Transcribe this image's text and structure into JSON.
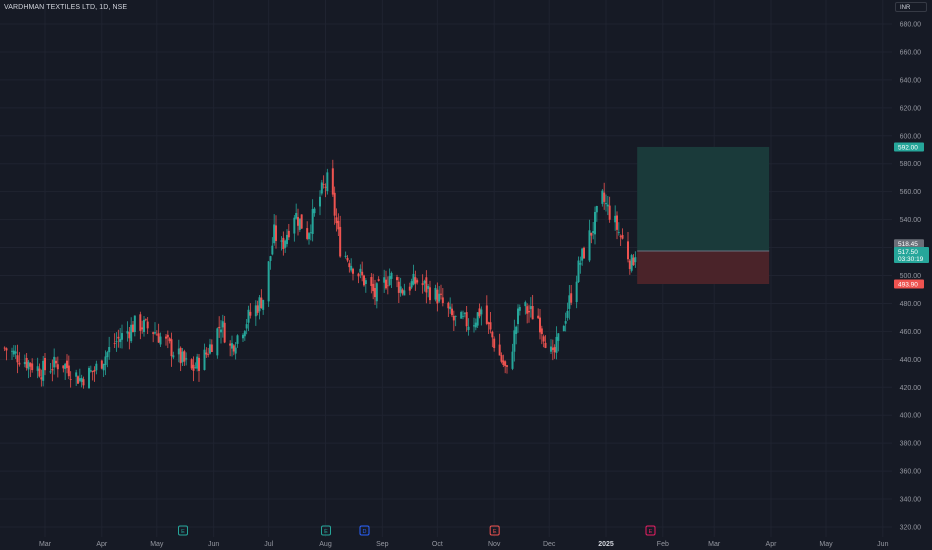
{
  "header": {
    "title": "VARDHMAN TEXTILES LTD, 1D, NSE",
    "currency": "INR"
  },
  "colors": {
    "background": "#161a25",
    "up": "#26a69a",
    "down": "#ef5350",
    "grid": "#1f2330",
    "profit_zone": "#1a3a3a",
    "loss_zone": "#4a2329"
  },
  "chart_data": {
    "type": "candlestick",
    "title": "VARDHMAN TEXTILES LTD, 1D, NSE",
    "y_axis": {
      "ticks": [
        "680.00",
        "660.00",
        "640.00",
        "620.00",
        "600.00",
        "580.00",
        "560.00",
        "540.00",
        "520.00",
        "500.00",
        "480.00",
        "460.00",
        "440.00",
        "420.00",
        "400.00",
        "380.00",
        "360.00",
        "340.00",
        "320.00"
      ],
      "ylim": [
        315,
        685
      ],
      "position": "right"
    },
    "x_axis": {
      "ticks": [
        {
          "label": "Mar",
          "date": "2024-03-01"
        },
        {
          "label": "Apr",
          "date": "2024-04-01"
        },
        {
          "label": "May",
          "date": "2024-05-01"
        },
        {
          "label": "Jun",
          "date": "2024-06-01"
        },
        {
          "label": "Jul",
          "date": "2024-07-01"
        },
        {
          "label": "Aug",
          "date": "2024-08-01"
        },
        {
          "label": "Sep",
          "date": "2024-09-01"
        },
        {
          "label": "Oct",
          "date": "2024-10-01"
        },
        {
          "label": "Nov",
          "date": "2024-11-01"
        },
        {
          "label": "Dec",
          "date": "2024-12-01"
        },
        {
          "label": "2025",
          "date": "2025-01-01",
          "bold": true
        },
        {
          "label": "Feb",
          "date": "2025-02-01"
        },
        {
          "label": "Mar",
          "date": "2025-03-01"
        },
        {
          "label": "Apr",
          "date": "2025-04-01"
        },
        {
          "label": "May",
          "date": "2025-05-01"
        },
        {
          "label": "Jun",
          "date": "2025-06-01"
        }
      ]
    },
    "grid": true,
    "price_path_close": [
      [
        "2024-02-08",
        448
      ],
      [
        "2024-02-18",
        440
      ],
      [
        "2024-02-28",
        432
      ],
      [
        "2024-03-10",
        438
      ],
      [
        "2024-03-20",
        426
      ],
      [
        "2024-03-28",
        432
      ],
      [
        "2024-04-08",
        452
      ],
      [
        "2024-04-20",
        466
      ],
      [
        "2024-04-30",
        460
      ],
      [
        "2024-05-10",
        446
      ],
      [
        "2024-05-20",
        432
      ],
      [
        "2024-05-28",
        444
      ],
      [
        "2024-06-05",
        466
      ],
      [
        "2024-06-10",
        448
      ],
      [
        "2024-06-20",
        470
      ],
      [
        "2024-06-28",
        484
      ],
      [
        "2024-07-04",
        530
      ],
      [
        "2024-07-08",
        520
      ],
      [
        "2024-07-15",
        545
      ],
      [
        "2024-07-22",
        530
      ],
      [
        "2024-07-30",
        560
      ],
      [
        "2024-08-03",
        570
      ],
      [
        "2024-08-09",
        520
      ],
      [
        "2024-08-20",
        500
      ],
      [
        "2024-08-28",
        486
      ],
      [
        "2024-09-05",
        500
      ],
      [
        "2024-09-12",
        490
      ],
      [
        "2024-09-20",
        496
      ],
      [
        "2024-10-01",
        485
      ],
      [
        "2024-10-10",
        468
      ],
      [
        "2024-10-20",
        466
      ],
      [
        "2024-10-25",
        476
      ],
      [
        "2024-11-01",
        452
      ],
      [
        "2024-11-08",
        430
      ],
      [
        "2024-11-15",
        478
      ],
      [
        "2024-11-25",
        470
      ],
      [
        "2024-12-03",
        440
      ],
      [
        "2024-12-10",
        472
      ],
      [
        "2024-12-18",
        510
      ],
      [
        "2024-12-25",
        535
      ],
      [
        "2024-12-30",
        555
      ],
      [
        "2025-01-05",
        540
      ],
      [
        "2025-01-10",
        525
      ],
      [
        "2025-01-15",
        508
      ],
      [
        "2025-01-17",
        517.5
      ]
    ],
    "annotations": {
      "target_price": "592.00",
      "last_price": "517.50",
      "countdown": "03:30:19",
      "prev_close": "518.45",
      "stop_price": "493.90"
    },
    "position_tool": {
      "entry": 517.5,
      "target": 592.0,
      "stop": 493.9,
      "start_date": "2025-01-18",
      "end_date": "2025-03-31"
    },
    "events": [
      {
        "label": "E",
        "date": "2024-05-15",
        "color": "#26a69a"
      },
      {
        "label": "E",
        "date": "2024-08-01",
        "color": "#26a69a"
      },
      {
        "label": "D",
        "date": "2024-08-22",
        "color": "#2962ff"
      },
      {
        "label": "E",
        "date": "2024-11-01",
        "color": "#ef5350"
      },
      {
        "label": "E",
        "date": "2025-01-25",
        "color": "#e91e63"
      }
    ]
  }
}
